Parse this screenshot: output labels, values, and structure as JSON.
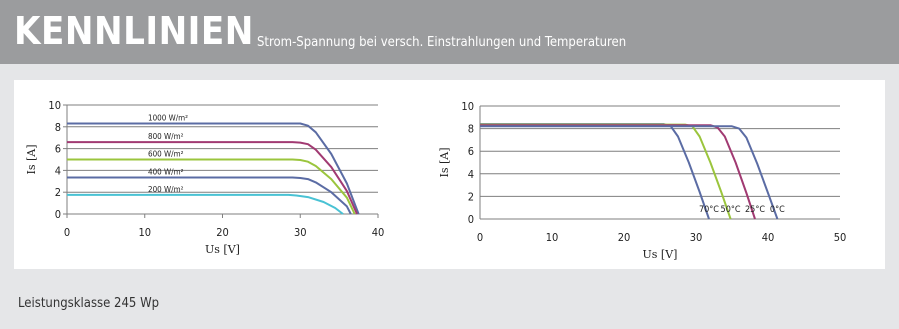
{
  "header": {
    "title": "KENNLINIEN",
    "subtitle": "Strom-Spannung bei versch. Einstrahlungen und Temperaturen"
  },
  "footer": {
    "label": "Leistungsklasse 245 Wp"
  },
  "colors": {
    "header_bg": "#9b9c9e",
    "page_bg": "#e5e6e8",
    "panel_bg": "#ffffff",
    "gridline": "#7f7f7f",
    "blue": "#5b6ca4",
    "magenta": "#a13a72",
    "green": "#9bc53d",
    "cyan": "#49c2d4"
  },
  "chart_data": [
    {
      "type": "line",
      "xlabel": "Us [V]",
      "ylabel": "Is [A]",
      "xlim": [
        0,
        40
      ],
      "ylim": [
        0,
        10
      ],
      "xticks": [
        0,
        10,
        20,
        30,
        40
      ],
      "yticks": [
        0,
        2,
        4,
        6,
        8,
        10
      ],
      "grid": "horizontal",
      "series": [
        {
          "name": "1000 W/m²",
          "color": "#5b6ca4",
          "x": [
            0,
            29,
            30,
            31,
            32,
            34,
            36,
            37.5
          ],
          "y": [
            8.3,
            8.3,
            8.3,
            8.1,
            7.5,
            5.5,
            2.8,
            0
          ]
        },
        {
          "name": "800 W/m²",
          "color": "#a13a72",
          "x": [
            0,
            29,
            30,
            31,
            32,
            34,
            36,
            37.3
          ],
          "y": [
            6.6,
            6.6,
            6.55,
            6.4,
            5.9,
            4.3,
            2.1,
            0
          ]
        },
        {
          "name": "600 W/m²",
          "color": "#9bc53d",
          "x": [
            0,
            29,
            30,
            31,
            32,
            34,
            36,
            37
          ],
          "y": [
            5.0,
            5.0,
            4.95,
            4.8,
            4.4,
            3.2,
            1.5,
            0
          ]
        },
        {
          "name": "400 W/m²",
          "color": "#5b6ca4",
          "x": [
            0,
            29,
            30,
            31,
            32,
            34,
            36,
            36.5
          ],
          "y": [
            3.35,
            3.35,
            3.3,
            3.2,
            2.9,
            2.0,
            0.7,
            0
          ]
        },
        {
          "name": "200 W/m²",
          "color": "#49c2d4",
          "x": [
            0,
            28.5,
            29.5,
            31,
            33,
            34.5,
            35.5
          ],
          "y": [
            1.75,
            1.75,
            1.7,
            1.55,
            1.1,
            0.55,
            0
          ]
        }
      ]
    },
    {
      "type": "line",
      "xlabel": "Us [V]",
      "ylabel": "Is [A]",
      "xlim": [
        0,
        50
      ],
      "ylim": [
        0,
        10
      ],
      "xticks": [
        0,
        10,
        20,
        30,
        40,
        50
      ],
      "yticks": [
        0,
        2,
        4,
        6,
        8,
        10
      ],
      "grid": "horizontal",
      "series": [
        {
          "name": "70°C",
          "color": "#5b6ca4",
          "x": [
            0,
            25.5,
            26.5,
            27.5,
            29,
            30.5,
            31.8
          ],
          "y": [
            8.4,
            8.4,
            8.2,
            7.3,
            5.0,
            2.4,
            0
          ]
        },
        {
          "name": "50°C",
          "color": "#9bc53d",
          "x": [
            0,
            28.5,
            29.5,
            30.5,
            32,
            33.5,
            34.8
          ],
          "y": [
            8.35,
            8.35,
            8.2,
            7.3,
            5.0,
            2.4,
            0
          ]
        },
        {
          "name": "25°C",
          "color": "#a13a72",
          "x": [
            0,
            32,
            33,
            34,
            35.5,
            37,
            38.2
          ],
          "y": [
            8.3,
            8.3,
            8.1,
            7.3,
            5.0,
            2.3,
            0
          ]
        },
        {
          "name": "0°C",
          "color": "#5b6ca4",
          "x": [
            0,
            35,
            36,
            37,
            38.5,
            40,
            41.3
          ],
          "y": [
            8.2,
            8.2,
            8.0,
            7.2,
            4.9,
            2.3,
            0
          ]
        }
      ]
    }
  ]
}
